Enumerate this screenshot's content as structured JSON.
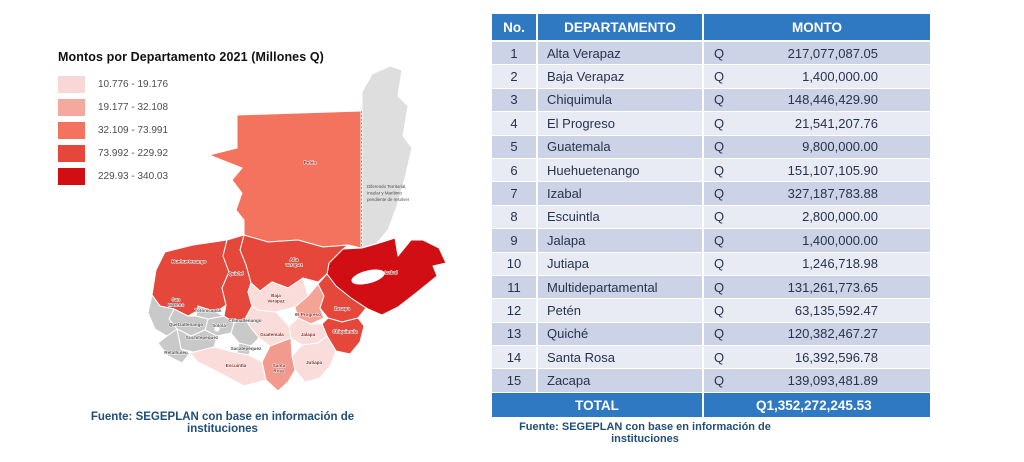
{
  "map_panel": {
    "legend": {
      "title": "Montos por Departamento 2021 (Millones Q)",
      "bins": [
        {
          "range": "10.776 - 19.176",
          "color": "#f8d8d6"
        },
        {
          "range": "19.177 - 32.108",
          "color": "#f5a99e"
        },
        {
          "range": "32.109 - 73.991",
          "color": "#f3735e"
        },
        {
          "range": "73.992 - 229.92",
          "color": "#e5473a"
        },
        {
          "range": "229.93 - 340.03",
          "color": "#d10e13"
        }
      ]
    },
    "belize": {
      "color": "#dedede",
      "note_lines": [
        "Diferendo Territorial,",
        "Insular y Marítimo",
        "pendiente de resolver"
      ]
    },
    "departments": [
      {
        "id": "peten",
        "name": "Petén",
        "label_lines": [
          "Petén"
        ],
        "color": "#f3735e",
        "label_style": "red"
      },
      {
        "id": "huehuetenango",
        "name": "Huehuetenango",
        "label_lines": [
          "Huehuetenango"
        ],
        "color": "#e5473a",
        "label_style": "red"
      },
      {
        "id": "quiche",
        "name": "Quiché",
        "label_lines": [
          "Quiché"
        ],
        "color": "#e5473a",
        "label_style": "red"
      },
      {
        "id": "alta_verapaz",
        "name": "Alta Verapaz",
        "label_lines": [
          "Alta",
          "Verapaz"
        ],
        "color": "#e5473a",
        "label_style": "red"
      },
      {
        "id": "izabal",
        "name": "Izabal",
        "label_lines": [
          "Izabal"
        ],
        "color": "#d10e13",
        "label_style": "red"
      },
      {
        "id": "zacapa",
        "name": "Zacapa",
        "label_lines": [
          "Zacapa"
        ],
        "color": "#e5473a",
        "label_style": "red"
      },
      {
        "id": "chiquimula",
        "name": "Chiquimula",
        "label_lines": [
          "Chiquimula"
        ],
        "color": "#e5473a",
        "label_style": "red"
      },
      {
        "id": "el_progreso",
        "name": "El Progreso",
        "label_lines": [
          "El Progreso"
        ],
        "color": "#f3a494",
        "label_style": "red"
      },
      {
        "id": "santa_rosa",
        "name": "Santa Rosa",
        "label_lines": [
          "Santa",
          "Rosa"
        ],
        "color": "#f19a8d",
        "label_style": "red"
      },
      {
        "id": "baja_verapaz",
        "name": "Baja Verapaz",
        "label_lines": [
          "Baja",
          "Verapaz"
        ],
        "color": "#fadcda",
        "label_style": "red"
      },
      {
        "id": "guatemala",
        "name": "Guatemala",
        "label_lines": [
          "Guatemala"
        ],
        "color": "#fadcda",
        "label_style": "red"
      },
      {
        "id": "jalapa",
        "name": "Jalapa",
        "label_lines": [
          "Jalapa"
        ],
        "color": "#fadcda",
        "label_style": "red"
      },
      {
        "id": "jutiapa",
        "name": "Jutiapa",
        "label_lines": [
          "Jutiapa"
        ],
        "color": "#fadcda",
        "label_style": "red"
      },
      {
        "id": "escuintla",
        "name": "Escuintla",
        "label_lines": [
          "Escuintla"
        ],
        "color": "#fadcda",
        "label_style": "red"
      },
      {
        "id": "san_marcos",
        "name": "San Marcos",
        "label_lines": [
          "San",
          "Marcos"
        ],
        "color": "#c9c9c9",
        "label_style": "gray"
      },
      {
        "id": "totonicapan",
        "name": "Totonicapán",
        "label_lines": [
          "Totonicapán"
        ],
        "color": "#c9c9c9",
        "label_style": "gray"
      },
      {
        "id": "quetzaltenango",
        "name": "Quetzaltenango",
        "label_lines": [
          "Quetzaltenango"
        ],
        "color": "#c9c9c9",
        "label_style": "gray"
      },
      {
        "id": "solola",
        "name": "Sololá",
        "label_lines": [
          "Sololá"
        ],
        "color": "#c9c9c9",
        "label_style": "gray"
      },
      {
        "id": "chimaltenango",
        "name": "Chimaltenango",
        "label_lines": [
          "Chimaltenango"
        ],
        "color": "#c9c9c9",
        "label_style": "gray"
      },
      {
        "id": "sacatepequez",
        "name": "Sacatepéquez",
        "label_lines": [
          "Sacatepéquez"
        ],
        "color": "#c9c9c9",
        "label_style": "gray"
      },
      {
        "id": "suchitepequez",
        "name": "Suchitepéquez",
        "label_lines": [
          "Suchitepéquez"
        ],
        "color": "#c9c9c9",
        "label_style": "gray"
      },
      {
        "id": "retalhuleu",
        "name": "Retalhuleu",
        "label_lines": [
          "Retalhuleu"
        ],
        "color": "#c9c9c9",
        "label_style": "gray"
      }
    ],
    "source": "Fuente: SEGEPLAN con base en información de instituciones"
  },
  "table": {
    "headers": {
      "no": "No.",
      "departamento": "DEPARTAMENTO",
      "monto": "MONTO"
    },
    "currency_symbol": "Q",
    "header_color": "#2F78C2",
    "rows": [
      {
        "no": "1",
        "departamento": "Alta Verapaz",
        "monto": "217,077,087.05"
      },
      {
        "no": "2",
        "departamento": "Baja Verapaz",
        "monto": "1,400,000.00"
      },
      {
        "no": "3",
        "departamento": "Chiquimula",
        "monto": "148,446,429.90"
      },
      {
        "no": "4",
        "departamento": "El Progreso",
        "monto": "21,541,207.76"
      },
      {
        "no": "5",
        "departamento": "Guatemala",
        "monto": "9,800,000.00"
      },
      {
        "no": "6",
        "departamento": "Huehuetenango",
        "monto": "151,107,105.90"
      },
      {
        "no": "7",
        "departamento": "Izabal",
        "monto": "327,187,783.88"
      },
      {
        "no": "8",
        "departamento": "Escuintla",
        "monto": "2,800,000.00"
      },
      {
        "no": "9",
        "departamento": "Jalapa",
        "monto": "1,400,000.00"
      },
      {
        "no": "10",
        "departamento": "Jutiapa",
        "monto": "1,246,718.98"
      },
      {
        "no": "11",
        "departamento": "Multidepartamental",
        "monto": "131,261,773.65"
      },
      {
        "no": "12",
        "departamento": "Petén",
        "monto": "63,135,592.47"
      },
      {
        "no": "13",
        "departamento": "Quiché",
        "monto": "120,382,467.27"
      },
      {
        "no": "14",
        "departamento": "Santa Rosa",
        "monto": "16,392,596.78"
      },
      {
        "no": "15",
        "departamento": "Zacapa",
        "monto": "139,093,481.89"
      }
    ],
    "total_label": "TOTAL",
    "total_monto": "1,352,272,245.53",
    "source": "Fuente: SEGEPLAN con base en información de instituciones"
  },
  "chart_data": {
    "type": "table",
    "title": "Montos por Departamento 2021 (Millones Q)",
    "columns": [
      "No.",
      "DEPARTAMENTO",
      "MONTO (Q)"
    ],
    "rows": [
      [
        1,
        "Alta Verapaz",
        217077087.05
      ],
      [
        2,
        "Baja Verapaz",
        1400000.0
      ],
      [
        3,
        "Chiquimula",
        148446429.9
      ],
      [
        4,
        "El Progreso",
        21541207.76
      ],
      [
        5,
        "Guatemala",
        9800000.0
      ],
      [
        6,
        "Huehuetenango",
        151107105.9
      ],
      [
        7,
        "Izabal",
        327187783.88
      ],
      [
        8,
        "Escuintla",
        2800000.0
      ],
      [
        9,
        "Jalapa",
        1400000.0
      ],
      [
        10,
        "Jutiapa",
        1246718.98
      ],
      [
        11,
        "Multidepartamental",
        131261773.65
      ],
      [
        12,
        "Petén",
        63135592.47
      ],
      [
        13,
        "Quiché",
        120382467.27
      ],
      [
        14,
        "Santa Rosa",
        16392596.78
      ],
      [
        15,
        "Zacapa",
        139093481.89
      ]
    ],
    "total": [
      "TOTAL",
      1352272245.53
    ],
    "currency": "Q",
    "legend_bins_millones_q": [
      "10.776 - 19.176",
      "19.177 - 32.108",
      "32.109 - 73.991",
      "73.992 - 229.92",
      "229.93 - 340.03"
    ],
    "map_no_data_departments": [
      "San Marcos",
      "Totonicapán",
      "Quetzaltenango",
      "Sololá",
      "Chimaltenango",
      "Sacatepéquez",
      "Suchitepéquez",
      "Retalhuleu"
    ]
  }
}
